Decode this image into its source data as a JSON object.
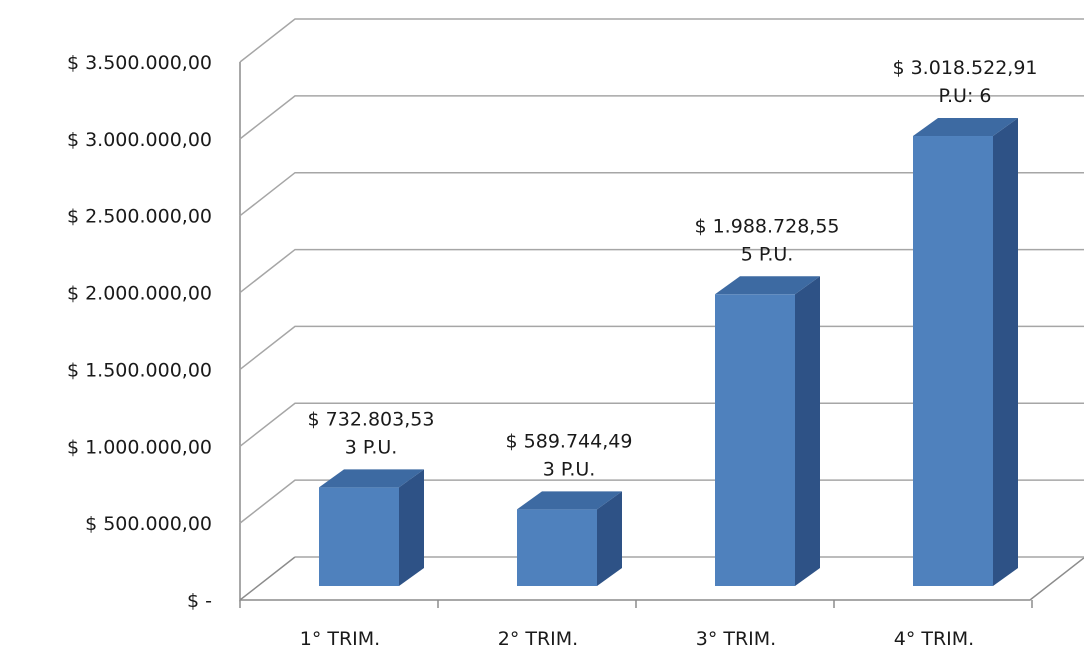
{
  "chart_data": {
    "type": "bar",
    "style": "3d-column",
    "title": "",
    "xlabel": "",
    "ylabel": "",
    "categories": [
      "1° TRIM.",
      "2° TRIM.",
      "3° TRIM.",
      "4° TRIM."
    ],
    "series": [
      {
        "values": [
          732803.53,
          589744.49,
          1988728.55,
          3018522.91
        ]
      }
    ],
    "data_labels": [
      {
        "value_text": "$ 732.803,53",
        "note": "3 P.U."
      },
      {
        "value_text": "$ 589.744,49",
        "note": "3 P.U."
      },
      {
        "value_text": "$ 1.988.728,55",
        "note": "5 P.U."
      },
      {
        "value_text": "$ 3.018.522,91",
        "note": "P.U: 6"
      }
    ],
    "y_ticks": [
      {
        "value": 0,
        "label": "$ -"
      },
      {
        "value": 500000,
        "label": "$ 500.000,00"
      },
      {
        "value": 1000000,
        "label": "$ 1.000.000,00"
      },
      {
        "value": 1500000,
        "label": "$ 1.500.000,00"
      },
      {
        "value": 2000000,
        "label": "$ 2.000.000,00"
      },
      {
        "value": 2500000,
        "label": "$ 2.500.000,00"
      },
      {
        "value": 3000000,
        "label": "$ 3.000.000,00"
      },
      {
        "value": 3500000,
        "label": "$ 3.500.000,00"
      }
    ],
    "ylim": [
      0,
      3500000
    ],
    "grid": true,
    "legend": "none",
    "colors": {
      "bar_front": "#4f81bd",
      "bar_side": "#2e5286",
      "bar_top": "#3d6aa2",
      "grid": "#a6a6a6"
    }
  }
}
